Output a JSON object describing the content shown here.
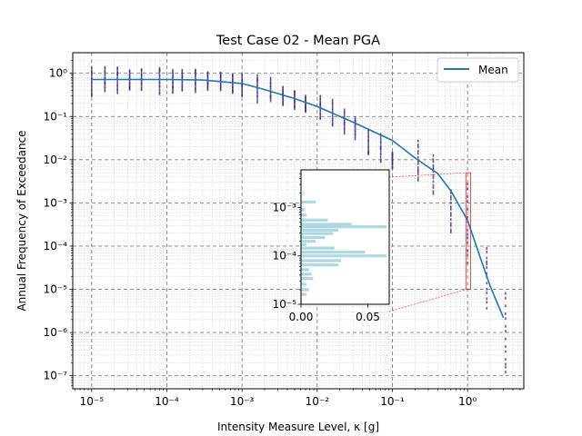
{
  "chart_data": {
    "type": "line",
    "title": "Test Case 02 - Mean PGA",
    "xlabel": "Intensity Measure Level, κ [g]",
    "ylabel": "Annual Frequency of Exceedance",
    "xscale": "log",
    "yscale": "log",
    "xlim": [
      5.6e-06,
      5.6
    ],
    "ylim": [
      5e-08,
      3.0
    ],
    "grid": true,
    "legend": "top-right",
    "x_tick_labels": [
      "10⁻⁵",
      "10⁻⁴",
      "10⁻³",
      "10⁻²",
      "10⁻¹",
      "10⁰"
    ],
    "y_tick_labels": [
      "10⁻⁷",
      "10⁻⁶",
      "10⁻⁵",
      "10⁻⁴",
      "10⁻³",
      "10⁻²",
      "10⁻¹",
      "10⁰"
    ],
    "colors": {
      "mean": "#1f77b4",
      "samples": "#3b1f7a",
      "inset": "#add8e6",
      "zoom_box": "#d62728"
    },
    "series": [
      {
        "name": "Mean",
        "x": [
          1e-05,
          0.0001,
          0.0003,
          0.001,
          0.002,
          0.005,
          0.01,
          0.03,
          0.1,
          0.2,
          0.4,
          0.6,
          1.0,
          1.5,
          2.0,
          3.0
        ],
        "y": [
          0.72,
          0.72,
          0.7,
          0.58,
          0.42,
          0.26,
          0.17,
          0.074,
          0.028,
          0.011,
          0.0048,
          0.0019,
          0.0004,
          5e-05,
          1.2e-05,
          2.2e-06
        ]
      }
    ],
    "scatter_columns": [
      {
        "x": 1e-05,
        "ymin": 0.3,
        "ymax": 1.45
      },
      {
        "x": 1.5e-05,
        "ymin": 0.35,
        "ymax": 1.4
      },
      {
        "x": 2.2e-05,
        "ymin": 0.32,
        "ymax": 1.4
      },
      {
        "x": 3.2e-05,
        "ymin": 0.4,
        "ymax": 1.2
      },
      {
        "x": 4.6e-05,
        "ymin": 0.4,
        "ymax": 1.3
      },
      {
        "x": 8e-05,
        "ymin": 0.32,
        "ymax": 1.42
      },
      {
        "x": 0.00012,
        "ymin": 0.35,
        "ymax": 1.3
      },
      {
        "x": 0.00016,
        "ymin": 0.4,
        "ymax": 1.3
      },
      {
        "x": 0.00024,
        "ymin": 0.35,
        "ymax": 1.2
      },
      {
        "x": 0.00035,
        "ymin": 0.4,
        "ymax": 1.1
      },
      {
        "x": 0.00052,
        "ymin": 0.4,
        "ymax": 1.1
      },
      {
        "x": 0.00075,
        "ymin": 0.35,
        "ymax": 1.0
      },
      {
        "x": 0.001,
        "ymin": 0.3,
        "ymax": 1.05
      },
      {
        "x": 0.0016,
        "ymin": 0.2,
        "ymax": 0.9
      },
      {
        "x": 0.0024,
        "ymin": 0.22,
        "ymax": 0.8
      },
      {
        "x": 0.0035,
        "ymin": 0.18,
        "ymax": 0.5
      },
      {
        "x": 0.005,
        "ymin": 0.15,
        "ymax": 0.4
      },
      {
        "x": 0.007,
        "ymin": 0.12,
        "ymax": 0.3
      },
      {
        "x": 0.011,
        "ymin": 0.08,
        "ymax": 0.3
      },
      {
        "x": 0.016,
        "ymin": 0.06,
        "ymax": 0.25
      },
      {
        "x": 0.023,
        "ymin": 0.04,
        "ymax": 0.15
      },
      {
        "x": 0.032,
        "ymin": 0.03,
        "ymax": 0.1
      },
      {
        "x": 0.048,
        "ymin": 0.012,
        "ymax": 0.05
      },
      {
        "x": 0.07,
        "ymin": 0.008,
        "ymax": 0.04
      },
      {
        "x": 0.1,
        "ymin": 0.006,
        "ymax": 0.015
      },
      {
        "x": 0.22,
        "ymin": 0.003,
        "ymax": 0.03
      },
      {
        "x": 0.35,
        "ymin": 0.0015,
        "ymax": 0.014
      },
      {
        "x": 0.6,
        "ymin": 0.0002,
        "ymax": 0.002
      },
      {
        "x": 1.0,
        "ymin": 3e-05,
        "ymax": 0.003
      },
      {
        "x": 1.8,
        "ymin": 3e-06,
        "ymax": 0.0001
      },
      {
        "x": 3.2,
        "ymin": 1e-07,
        "ymax": 1e-05
      }
    ],
    "zoom_box": {
      "x": [
        0.95,
        1.1
      ],
      "y": [
        1e-05,
        0.005
      ]
    },
    "inset": {
      "type": "histogram",
      "orientation": "horizontal",
      "xlim": [
        0,
        0.066
      ],
      "ylim": [
        1e-05,
        0.006
      ],
      "yscale": "log",
      "x_tick_labels": [
        "0.00",
        "0.05"
      ],
      "y_tick_labels": [
        "10⁻⁵",
        "10⁻⁴",
        "10⁻³"
      ],
      "bins": [
        {
          "y": 0.0013,
          "v": 0.011
        },
        {
          "y": 0.0009,
          "v": 0.003
        },
        {
          "y": 0.0007,
          "v": 0.004
        },
        {
          "y": 0.00055,
          "v": 0.02
        },
        {
          "y": 0.00045,
          "v": 0.038
        },
        {
          "y": 0.0004,
          "v": 0.064
        },
        {
          "y": 0.00034,
          "v": 0.028
        },
        {
          "y": 0.00029,
          "v": 0.024
        },
        {
          "y": 0.00024,
          "v": 0.018
        },
        {
          "y": 0.0002,
          "v": 0.011
        },
        {
          "y": 0.00017,
          "v": 0.004
        },
        {
          "y": 0.000145,
          "v": 0.025
        },
        {
          "y": 0.00012,
          "v": 0.048
        },
        {
          "y": 0.0001,
          "v": 0.064
        },
        {
          "y": 8e-05,
          "v": 0.03
        },
        {
          "y": 6.5e-05,
          "v": 0.028
        },
        {
          "y": 5.2e-05,
          "v": 0.006
        },
        {
          "y": 4.2e-05,
          "v": 0.008
        },
        {
          "y": 3.4e-05,
          "v": 0.009
        },
        {
          "y": 2.6e-05,
          "v": 0.004
        },
        {
          "y": 2e-05,
          "v": 0.006
        },
        {
          "y": 1.6e-05,
          "v": 0.004
        }
      ]
    }
  }
}
